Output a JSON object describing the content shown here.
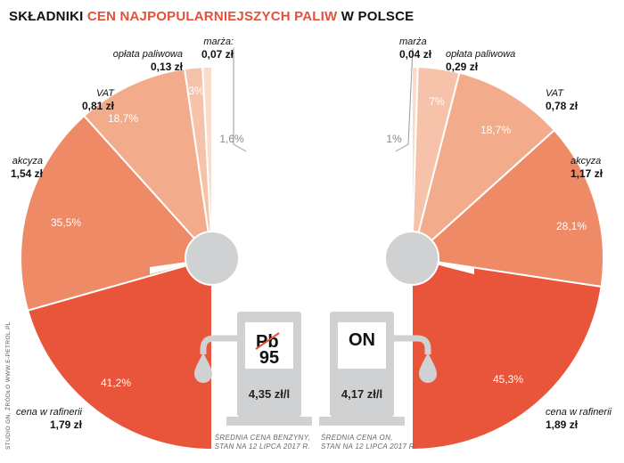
{
  "title": {
    "part1": "SKŁADNIKI",
    "part2": "CEN NAJPOPULARNIEJSZYCH PALIW",
    "part3": "W POLSCE"
  },
  "credit": "STUDIO GN, ŹRÓDŁO WWW.E-PETROL.PL",
  "chart_data": [
    {
      "type": "pie",
      "fuel_label": "Pb 95",
      "slices": [
        {
          "name": "cena w rafinerii",
          "value_text": "1,79 zł",
          "pct": 41.2,
          "pct_text": "41,2%",
          "color": "#e8553a"
        },
        {
          "name": "akcyza",
          "value_text": "1,54 zł",
          "pct": 35.5,
          "pct_text": "35,5%",
          "color": "#ee8a65"
        },
        {
          "name": "VAT",
          "value_text": "0,81 zł",
          "pct": 18.7,
          "pct_text": "18,7%",
          "color": "#f3ac8b"
        },
        {
          "name": "opłata paliwowa",
          "value_text": "0,13 zł",
          "pct": 3.0,
          "pct_text": "3%",
          "color": "#f6c3aa"
        },
        {
          "name": "marża:",
          "value_text": "0,07 zł",
          "pct": 1.6,
          "pct_text": "1,6%",
          "color": "#f9dccb"
        }
      ],
      "avg_price": "4,35 zł/l",
      "note_line1": "ŚREDNIA CENA BENZYNY,",
      "note_line2": "STAN NA 12 LIPCA 2017 R."
    },
    {
      "type": "pie",
      "fuel_label": "ON",
      "slices": [
        {
          "name": "cena w rafinerii",
          "value_text": "1,89 zł",
          "pct": 45.3,
          "pct_text": "45,3%",
          "color": "#e8553a"
        },
        {
          "name": "akcyza",
          "value_text": "1,17 zł",
          "pct": 28.1,
          "pct_text": "28,1%",
          "color": "#ee8a65"
        },
        {
          "name": "VAT",
          "value_text": "0,78 zł",
          "pct": 18.7,
          "pct_text": "18,7%",
          "color": "#f3ac8b"
        },
        {
          "name": "opłata paliwowa",
          "value_text": "0,29 zł",
          "pct": 7.0,
          "pct_text": "7%",
          "color": "#f6c3aa"
        },
        {
          "name": "marża",
          "value_text": "0,04 zł",
          "pct": 1.0,
          "pct_text": "1%",
          "color": "#f9dccb"
        }
      ],
      "avg_price": "4,17 zł/l",
      "note_line1": "ŚREDNIA CENA ON,",
      "note_line2": "STAN NA 12 LIPCA 2017 R."
    }
  ]
}
